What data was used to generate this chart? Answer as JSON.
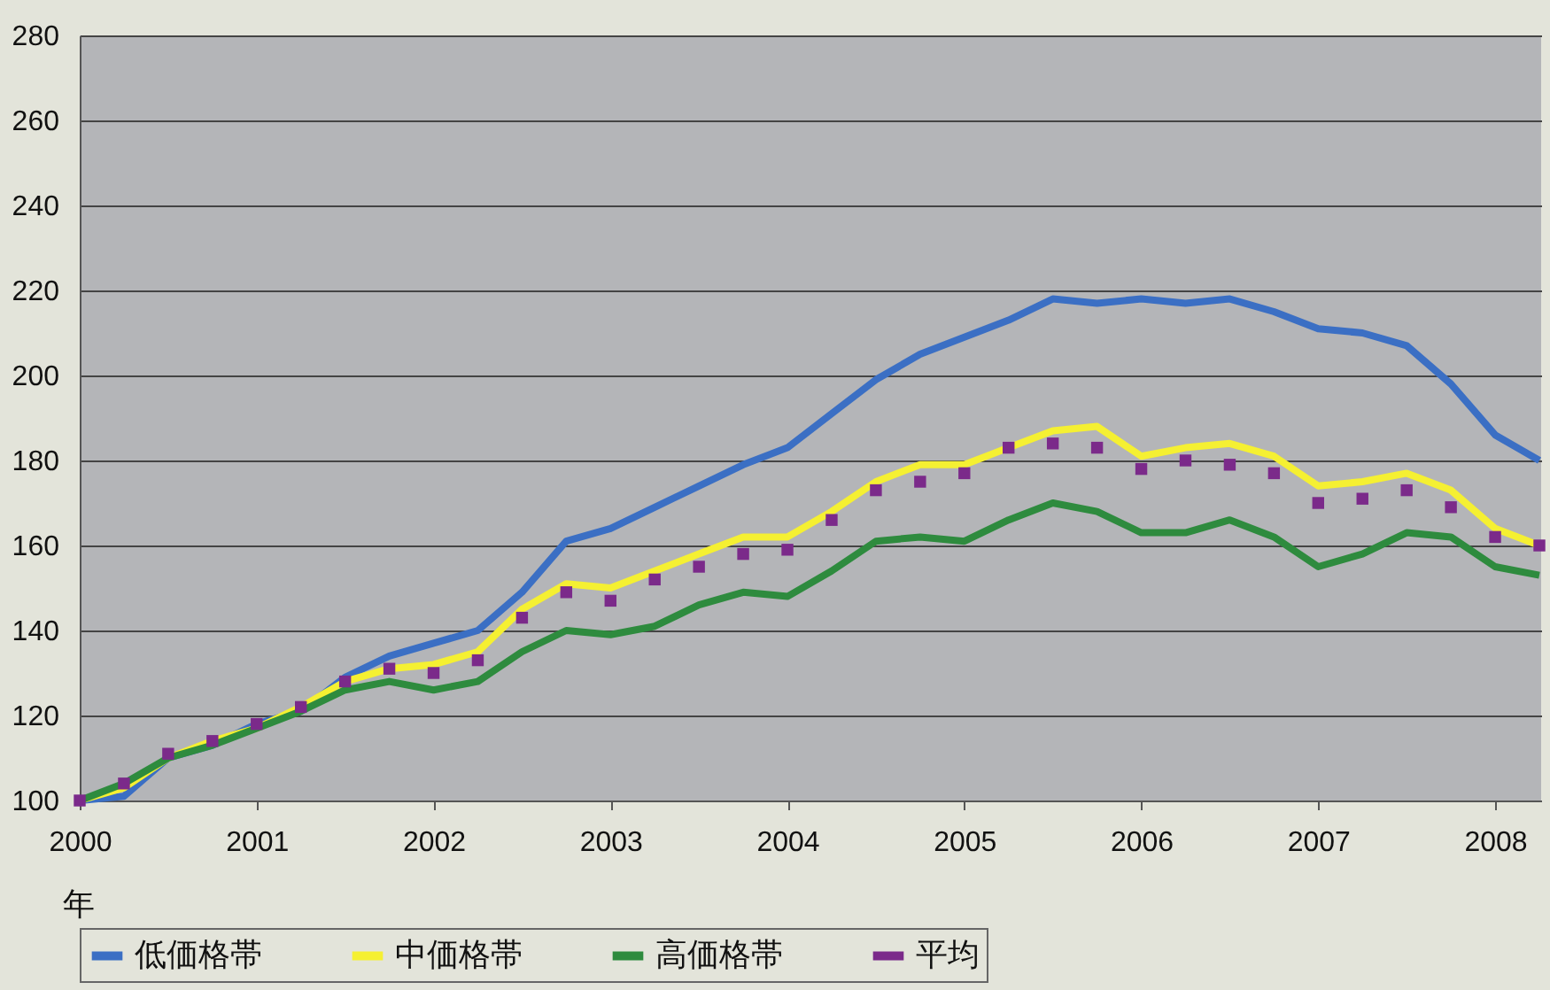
{
  "chart_data": {
    "type": "line",
    "xlabel": "年",
    "x": [
      2000,
      2000.25,
      2000.5,
      2000.75,
      2001,
      2001.25,
      2001.5,
      2001.75,
      2002,
      2002.25,
      2002.5,
      2002.75,
      2003,
      2003.25,
      2003.5,
      2003.75,
      2004,
      2004.25,
      2004.5,
      2004.75,
      2005,
      2005.25,
      2005.5,
      2005.75,
      2006,
      2006.25,
      2006.5,
      2006.75,
      2007,
      2007.25,
      2007.5,
      2007.75,
      2008,
      2008.25
    ],
    "series": [
      {
        "name": "低価格帯",
        "color": "#3b6fc4",
        "values": [
          100,
          101,
          110,
          113,
          118,
          121,
          129,
          134,
          137,
          140,
          149,
          161,
          164,
          169,
          174,
          179,
          183,
          191,
          199,
          205,
          209,
          213,
          218,
          217,
          218,
          217,
          218,
          215,
          211,
          210,
          207,
          198,
          186,
          180
        ]
      },
      {
        "name": "中価格帯",
        "color": "#f5f032",
        "values": [
          100,
          103,
          110,
          114,
          117,
          122,
          128,
          131,
          132,
          135,
          145,
          151,
          150,
          154,
          158,
          162,
          162,
          168,
          175,
          179,
          179,
          183,
          187,
          188,
          181,
          183,
          184,
          181,
          174,
          175,
          177,
          173,
          164,
          160
        ]
      },
      {
        "name": "高価格帯",
        "color": "#2e8b3e",
        "values": [
          100,
          104,
          110,
          113,
          117,
          121,
          126,
          128,
          126,
          128,
          135,
          140,
          139,
          141,
          146,
          149,
          148,
          154,
          161,
          162,
          161,
          166,
          170,
          168,
          163,
          163,
          166,
          162,
          155,
          158,
          163,
          162,
          155,
          153
        ]
      },
      {
        "name": "平均",
        "type": "scatter",
        "marker": "square",
        "color": "#7b2a8a",
        "values": [
          100,
          104,
          111,
          114,
          118,
          122,
          128,
          131,
          130,
          133,
          143,
          149,
          147,
          152,
          155,
          158,
          159,
          166,
          173,
          175,
          177,
          183,
          184,
          183,
          178,
          180,
          179,
          177,
          170,
          171,
          173,
          169,
          162,
          160
        ]
      }
    ],
    "xlim": [
      2000,
      2008.26
    ],
    "xticks": [
      2000,
      2001,
      2002,
      2003,
      2004,
      2005,
      2006,
      2007,
      2008
    ],
    "ylim": [
      100,
      280
    ],
    "yticks": [
      100,
      120,
      140,
      160,
      180,
      200,
      220,
      240,
      260,
      280
    ],
    "grid": "y",
    "legend": "bottom",
    "line_style": "solid"
  }
}
